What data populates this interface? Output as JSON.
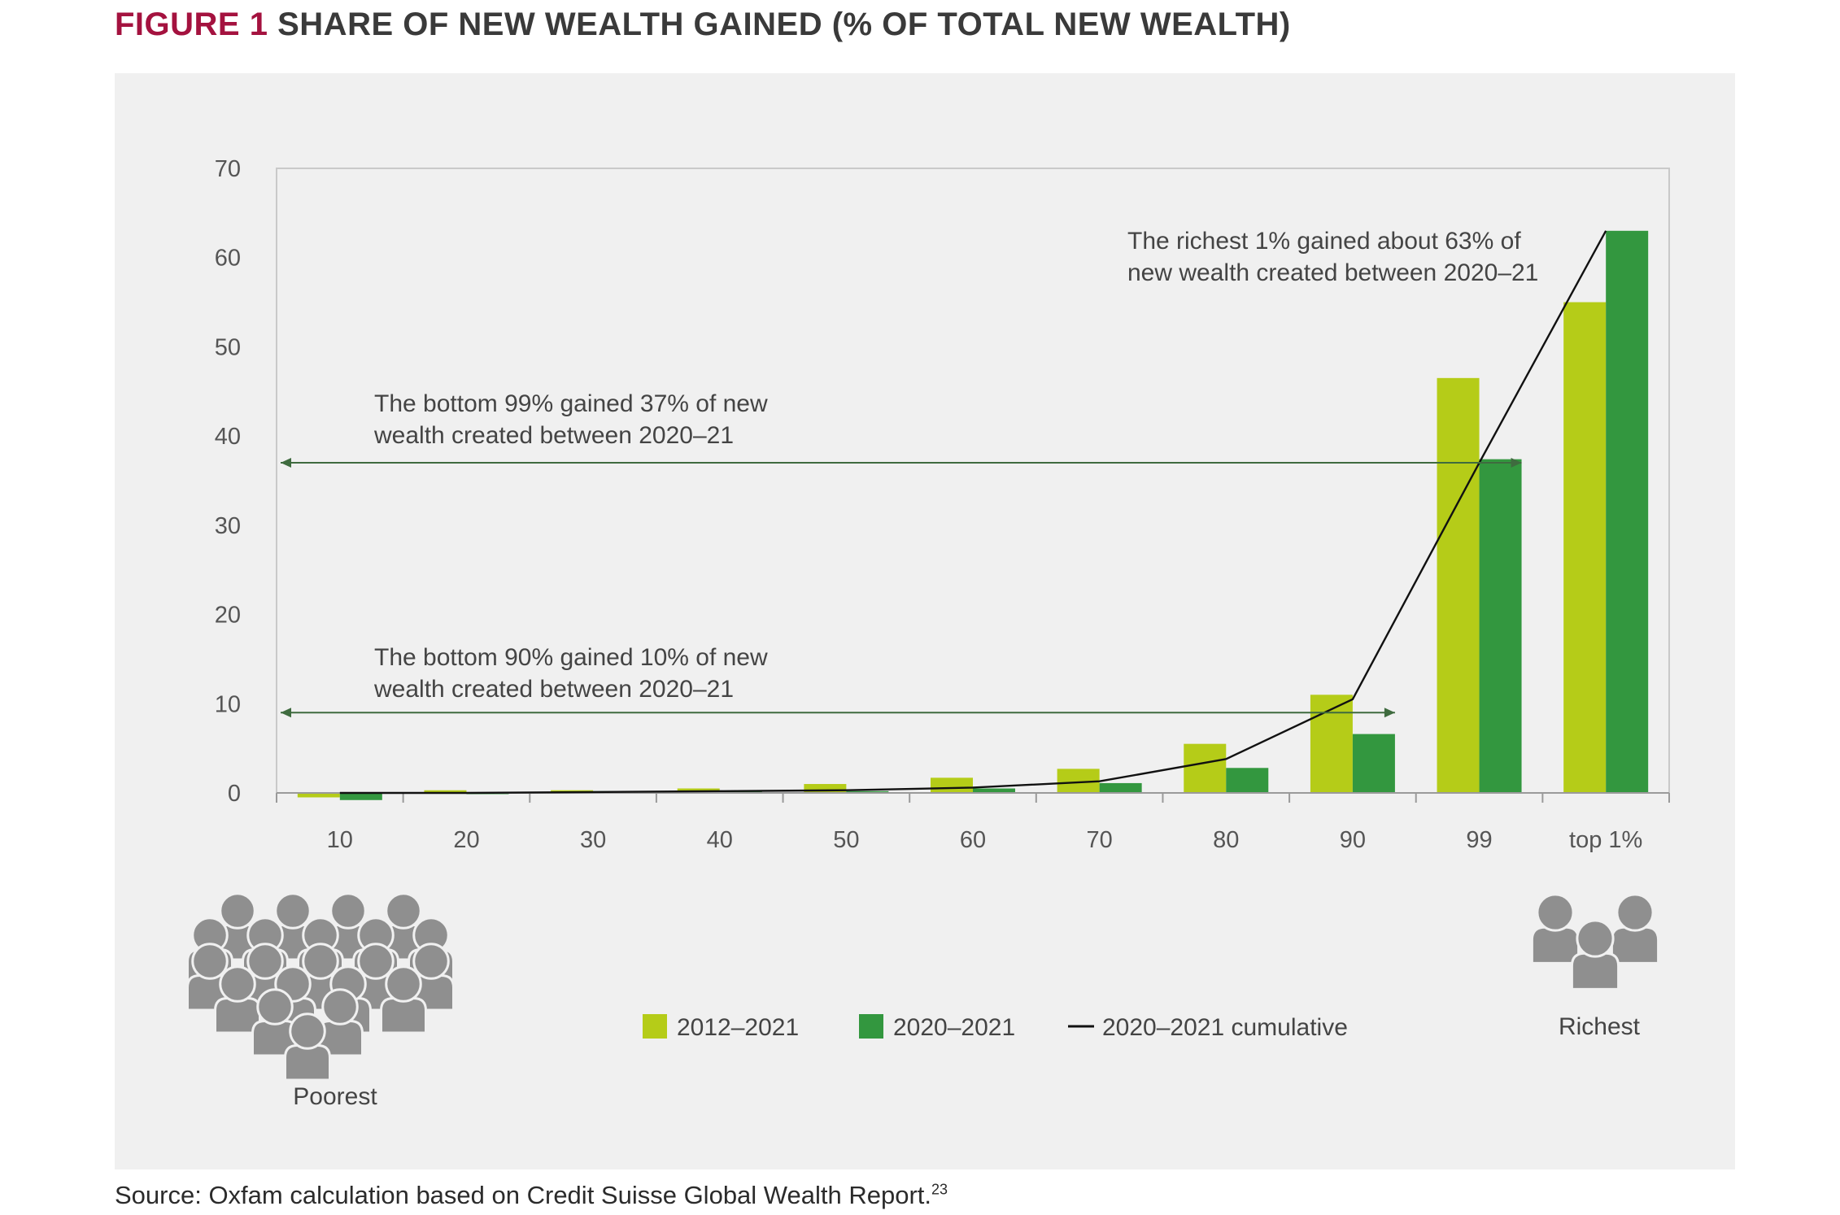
{
  "figure": {
    "label": "FIGURE 1",
    "title": "SHARE OF NEW WEALTH GAINED (% OF TOTAL NEW WEALTH)"
  },
  "source": {
    "text": "Source: Oxfam calculation based on Credit Suisse Global Wealth Report.",
    "footnote": "23"
  },
  "colors": {
    "series_2012": "#b5cc18",
    "series_2020": "#33973f",
    "cumulative": "#111111",
    "arrow": "#3f6b3f",
    "icon": "#8f8f8f",
    "title_accent": "#a4123f"
  },
  "icons": {
    "poorest": "crowd-icon",
    "richest": "group-icon"
  },
  "chart_data": {
    "type": "bar",
    "title": "SHARE OF NEW WEALTH GAINED (% OF TOTAL NEW WEALTH)",
    "xlabel": "",
    "ylabel": "",
    "ylim": [
      0,
      70
    ],
    "yticks": [
      "70",
      "60",
      "50",
      "40",
      "30",
      "20",
      "10",
      "0"
    ],
    "ytick_values": [
      70,
      60,
      50,
      40,
      30,
      20,
      10,
      0
    ],
    "categories": [
      "10",
      "20",
      "30",
      "40",
      "50",
      "60",
      "70",
      "80",
      "90",
      "99",
      "top 1%"
    ],
    "series": [
      {
        "name": "2012–2021",
        "type": "bar",
        "values": [
          -0.5,
          0.3,
          0.3,
          0.5,
          1.0,
          1.7,
          2.7,
          5.5,
          11.0,
          46.5,
          55.0
        ]
      },
      {
        "name": "2020–2021",
        "type": "bar",
        "values": [
          -0.8,
          0.0,
          0.2,
          0.2,
          0.2,
          0.5,
          1.1,
          2.8,
          6.6,
          37.4,
          63.0
        ]
      },
      {
        "name": "2020–2021 cumulative",
        "type": "line",
        "values": [
          0.0,
          0.0,
          0.1,
          0.2,
          0.3,
          0.6,
          1.3,
          3.8,
          10.5,
          37.0,
          63.0
        ]
      }
    ],
    "annotations": [
      {
        "lines": [
          "The richest 1% gained about 63% of",
          "new wealth created between 2020–21"
        ]
      },
      {
        "lines": [
          "The bottom 99% gained 37% of new",
          "wealth created between 2020–21"
        ],
        "arrow_value": 37,
        "arrow_to_category": "99"
      },
      {
        "lines": [
          "The bottom 90% gained 10% of new",
          "wealth created between 2020–21"
        ],
        "arrow_value": 9,
        "arrow_to_category": "90"
      }
    ],
    "legend": {
      "placement": "bottom-center",
      "items": [
        {
          "label": "2012–2021",
          "kind": "swatch"
        },
        {
          "label": "2020–2021",
          "kind": "swatch"
        },
        {
          "label": "2020–2021 cumulative",
          "kind": "line"
        }
      ]
    },
    "side_labels": {
      "left": "Poorest",
      "right": "Richest"
    }
  }
}
